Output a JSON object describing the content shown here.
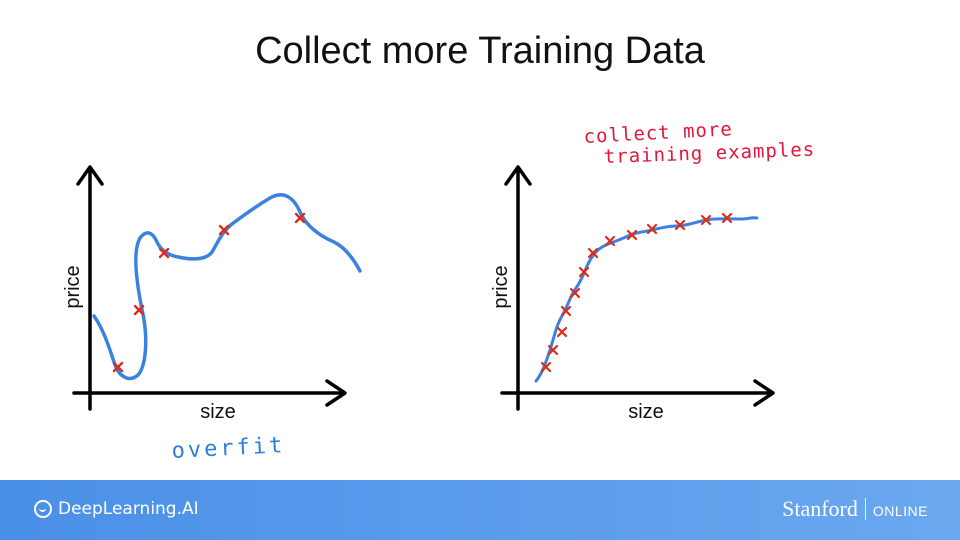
{
  "title": "Collect more Training Data",
  "left_plot": {
    "ylabel": "price",
    "xlabel": "size",
    "annotation": "overfit"
  },
  "right_plot": {
    "ylabel": "price",
    "xlabel": "size",
    "annotation_line1": "collect more",
    "annotation_line2": "training examples"
  },
  "footer": {
    "left_brand": "DeepLearning.AI",
    "right_brand_main": "Stanford",
    "right_brand_sub": "ONLINE"
  },
  "colors": {
    "curve": "#3b82e0",
    "marker": "#e02a1a",
    "ink_red": "#e0163a",
    "ink_blue": "#2b7fd9",
    "footer_gradient_start": "#4a8fe8",
    "footer_gradient_end": "#6aa8ef"
  }
}
